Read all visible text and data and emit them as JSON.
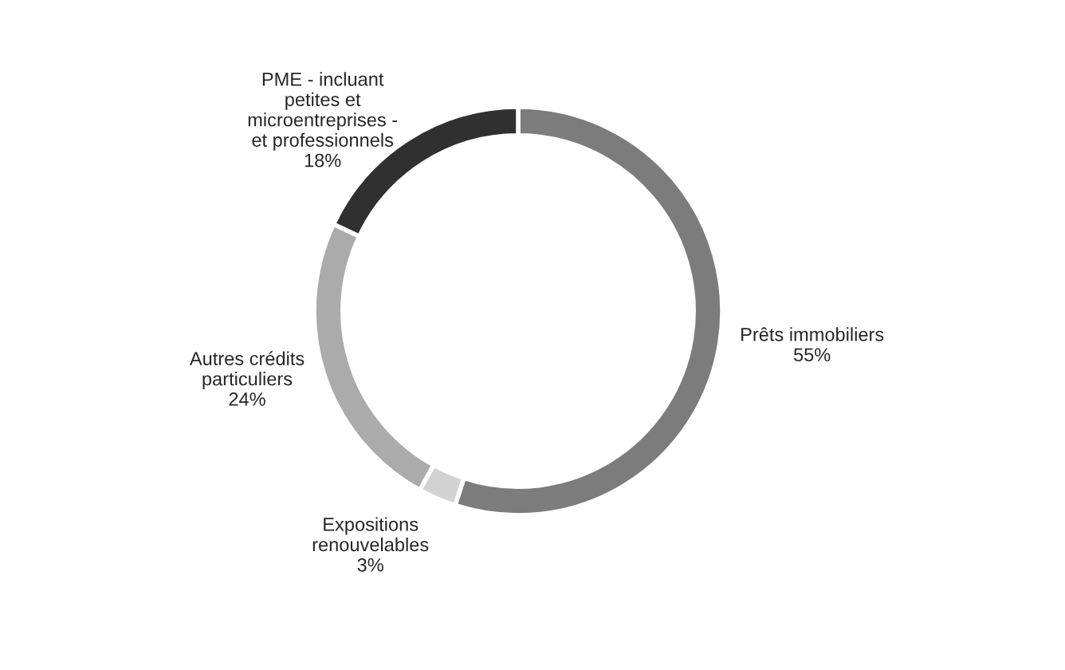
{
  "chart_data": {
    "type": "donut",
    "categories": [
      "Prêts immobiliers",
      "Expositions\nrenouvelables",
      "Autres crédits\nparticuliers",
      "PME - incluant\npetites et\nmicroentreprises -\net professionnels"
    ],
    "values": [
      55,
      3,
      24,
      18
    ],
    "value_labels": [
      "55%",
      "3%",
      "24%",
      "18%"
    ],
    "colors": [
      "#7c7c7c",
      "#d2d2d2",
      "#ababab",
      "#303030"
    ],
    "legend": false
  }
}
